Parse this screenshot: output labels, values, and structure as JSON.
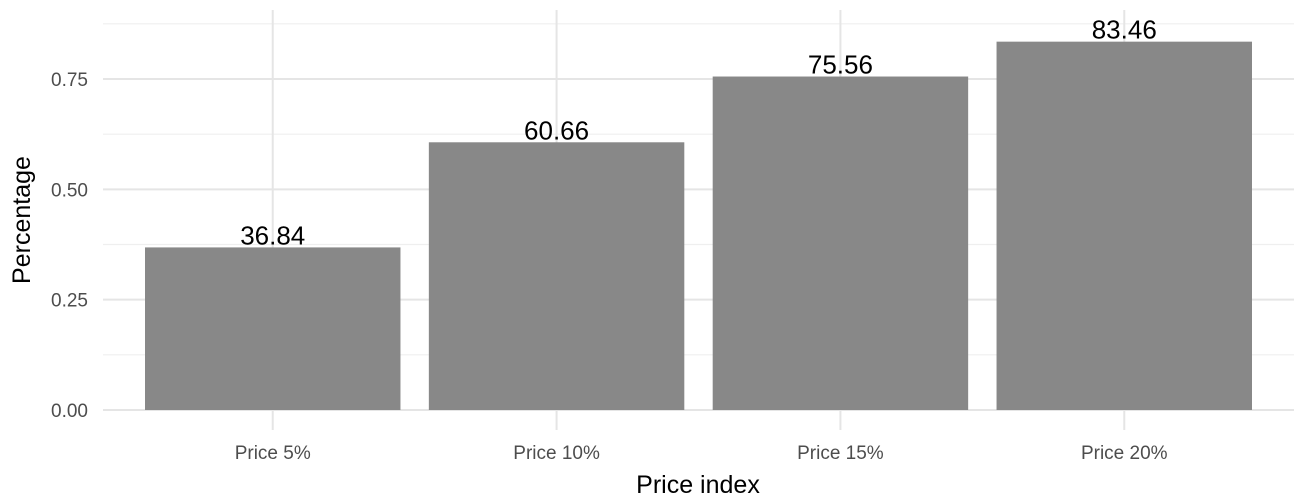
{
  "chart_data": {
    "type": "bar",
    "title": "",
    "xlabel": "Price index",
    "ylabel": "Percentage",
    "categories": [
      "Price 5%",
      "Price 10%",
      "Price 15%",
      "Price 20%"
    ],
    "values": [
      0.3684,
      0.6066,
      0.7556,
      0.8346
    ],
    "data_labels": [
      "36.84",
      "60.66",
      "75.56",
      "83.46"
    ],
    "ylim": [
      0,
      0.88
    ],
    "yticks": [
      0,
      0.25,
      0.5,
      0.75
    ],
    "ytick_labels": [
      "0.00",
      "0.25",
      "0.50",
      "0.75"
    ],
    "grid": true,
    "legend": "none",
    "colors": {
      "bar": "#888888",
      "grid_major": "#e5e5e5",
      "grid_minor": "#efefef",
      "tick_text": "#4d4d4d"
    }
  }
}
